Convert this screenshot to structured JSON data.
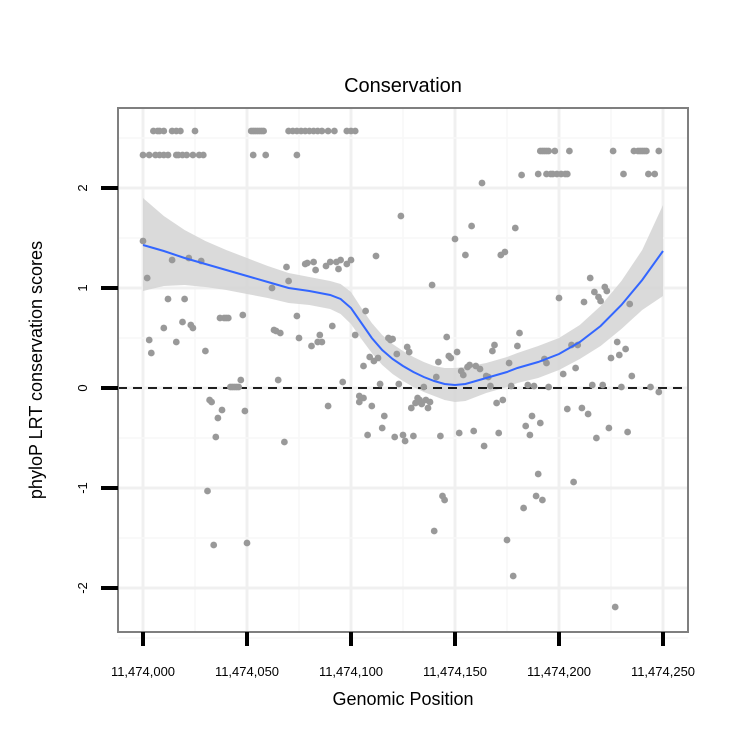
{
  "chart_data": {
    "type": "scatter",
    "title": "Conservation",
    "xlabel": "Genomic Position",
    "ylabel": "phyloP LRT conservation scores",
    "xlim": [
      11473988,
      11474262
    ],
    "ylim": [
      -2.45,
      2.8
    ],
    "xticks": [
      11474000,
      11474050,
      11474100,
      11474150,
      11474200,
      11474250
    ],
    "xtick_labels": [
      "11,474,000",
      "11,474,050",
      "11,474,100",
      "11,474,150",
      "11,474,200",
      "11,474,250"
    ],
    "yticks": [
      -2,
      -1,
      0,
      1,
      2
    ],
    "ytick_labels": [
      "-2",
      "-1",
      "0",
      "1",
      "2"
    ],
    "reference_line": {
      "y": 0,
      "style": "dashed"
    },
    "colors": {
      "points": "#999999",
      "smooth": "#3366FF",
      "band": "#d3d3d3",
      "frame": "#7f7f7f",
      "grid": "#f2f2f2"
    },
    "points": [
      [
        11474000,
        1.47
      ],
      [
        11474002,
        1.1
      ],
      [
        11474003,
        0.48
      ],
      [
        11474004,
        0.35
      ],
      [
        11474005,
        2.57
      ],
      [
        11474007,
        2.57
      ],
      [
        11474008,
        2.57
      ],
      [
        11474010,
        2.57
      ],
      [
        11474000,
        2.33
      ],
      [
        11474003,
        2.33
      ],
      [
        11474006,
        2.33
      ],
      [
        11474008,
        2.33
      ],
      [
        11474010,
        2.33
      ],
      [
        11474012,
        2.33
      ],
      [
        11474014,
        2.57
      ],
      [
        11474016,
        2.33
      ],
      [
        11474017,
        2.33
      ],
      [
        11474019,
        2.33
      ],
      [
        11474021,
        2.33
      ],
      [
        11474016,
        2.57
      ],
      [
        11474018,
        2.57
      ],
      [
        11474025,
        2.57
      ],
      [
        11474024,
        2.33
      ],
      [
        11474027,
        2.33
      ],
      [
        11474029,
        2.33
      ],
      [
        11474010,
        0.6
      ],
      [
        11474012,
        0.89
      ],
      [
        11474014,
        1.28
      ],
      [
        11474016,
        0.46
      ],
      [
        11474019,
        0.66
      ],
      [
        11474020,
        0.89
      ],
      [
        11474023,
        0.63
      ],
      [
        11474024,
        0.6
      ],
      [
        11474022,
        1.3
      ],
      [
        11474028,
        1.27
      ],
      [
        11474030,
        0.37
      ],
      [
        11474031,
        -1.03
      ],
      [
        11474032,
        -0.12
      ],
      [
        11474033,
        -0.14
      ],
      [
        11474034,
        -1.57
      ],
      [
        11474035,
        -0.49
      ],
      [
        11474036,
        -0.3
      ],
      [
        11474037,
        0.7
      ],
      [
        11474038,
        -0.22
      ],
      [
        11474039,
        0.7
      ],
      [
        11474040,
        0.7
      ],
      [
        11474041,
        0.7
      ],
      [
        11474042,
        0.01
      ],
      [
        11474043,
        0.01
      ],
      [
        11474044,
        0.01
      ],
      [
        11474045,
        0.01
      ],
      [
        11474046,
        0.01
      ],
      [
        11474047,
        0.08
      ],
      [
        11474048,
        0.73
      ],
      [
        11474049,
        -0.23
      ],
      [
        11474050,
        -1.55
      ],
      [
        11474052,
        2.57
      ],
      [
        11474053,
        2.57
      ],
      [
        11474054,
        2.57
      ],
      [
        11474055,
        2.57
      ],
      [
        11474056,
        2.57
      ],
      [
        11474057,
        2.57
      ],
      [
        11474058,
        2.57
      ],
      [
        11474053,
        2.33
      ],
      [
        11474059,
        2.33
      ],
      [
        11474062,
        1.0
      ],
      [
        11474063,
        0.58
      ],
      [
        11474064,
        0.57
      ],
      [
        11474065,
        0.08
      ],
      [
        11474066,
        0.55
      ],
      [
        11474068,
        -0.54
      ],
      [
        11474069,
        1.21
      ],
      [
        11474070,
        1.07
      ],
      [
        11474070,
        2.57
      ],
      [
        11474072,
        2.57
      ],
      [
        11474074,
        2.57
      ],
      [
        11474076,
        2.57
      ],
      [
        11474078,
        2.57
      ],
      [
        11474080,
        2.57
      ],
      [
        11474082,
        2.57
      ],
      [
        11474084,
        2.57
      ],
      [
        11474086,
        2.57
      ],
      [
        11474089,
        2.57
      ],
      [
        11474092,
        2.57
      ],
      [
        11474098,
        2.57
      ],
      [
        11474100,
        2.57
      ],
      [
        11474102,
        2.57
      ],
      [
        11474074,
        2.33
      ],
      [
        11474074,
        0.72
      ],
      [
        11474075,
        0.5
      ],
      [
        11474078,
        1.24
      ],
      [
        11474079,
        1.25
      ],
      [
        11474081,
        0.42
      ],
      [
        11474082,
        1.26
      ],
      [
        11474083,
        1.18
      ],
      [
        11474084,
        0.46
      ],
      [
        11474085,
        0.53
      ],
      [
        11474086,
        0.46
      ],
      [
        11474088,
        1.22
      ],
      [
        11474089,
        -0.18
      ],
      [
        11474090,
        1.26
      ],
      [
        11474091,
        0.62
      ],
      [
        11474093,
        1.26
      ],
      [
        11474094,
        1.19
      ],
      [
        11474095,
        1.28
      ],
      [
        11474096,
        0.06
      ],
      [
        11474098,
        1.24
      ],
      [
        11474100,
        1.28
      ],
      [
        11474102,
        0.53
      ],
      [
        11474104,
        -0.14
      ],
      [
        11474104,
        -0.08
      ],
      [
        11474106,
        -0.1
      ],
      [
        11474106,
        0.22
      ],
      [
        11474107,
        0.77
      ],
      [
        11474108,
        -0.47
      ],
      [
        11474109,
        0.31
      ],
      [
        11474110,
        -0.18
      ],
      [
        11474111,
        0.27
      ],
      [
        11474112,
        1.32
      ],
      [
        11474113,
        0.3
      ],
      [
        11474114,
        0.04
      ],
      [
        11474115,
        -0.4
      ],
      [
        11474116,
        -0.28
      ],
      [
        11474118,
        0.5
      ],
      [
        11474119,
        0.48
      ],
      [
        11474120,
        0.49
      ],
      [
        11474121,
        -0.49
      ],
      [
        11474122,
        0.34
      ],
      [
        11474123,
        0.04
      ],
      [
        11474124,
        1.72
      ],
      [
        11474125,
        -0.47
      ],
      [
        11474126,
        -0.53
      ],
      [
        11474127,
        0.41
      ],
      [
        11474128,
        0.36
      ],
      [
        11474129,
        -0.2
      ],
      [
        11474130,
        -0.48
      ],
      [
        11474131,
        -0.15
      ],
      [
        11474132,
        -0.1
      ],
      [
        11474133,
        -0.12
      ],
      [
        11474134,
        -0.16
      ],
      [
        11474135,
        0.01
      ],
      [
        11474136,
        -0.12
      ],
      [
        11474137,
        -0.2
      ],
      [
        11474138,
        -0.14
      ],
      [
        11474139,
        1.03
      ],
      [
        11474140,
        -1.43
      ],
      [
        11474141,
        0.11
      ],
      [
        11474142,
        0.26
      ],
      [
        11474143,
        -0.48
      ],
      [
        11474144,
        -1.08
      ],
      [
        11474145,
        -1.12
      ],
      [
        11474146,
        0.51
      ],
      [
        11474147,
        0.32
      ],
      [
        11474148,
        0.3
      ],
      [
        11474150,
        1.49
      ],
      [
        11474151,
        0.36
      ],
      [
        11474152,
        -0.45
      ],
      [
        11474153,
        0.17
      ],
      [
        11474154,
        0.13
      ],
      [
        11474155,
        1.33
      ],
      [
        11474156,
        0.21
      ],
      [
        11474157,
        0.23
      ],
      [
        11474158,
        1.62
      ],
      [
        11474159,
        -0.43
      ],
      [
        11474160,
        0.22
      ],
      [
        11474162,
        0.19
      ],
      [
        11474163,
        2.05
      ],
      [
        11474164,
        -0.58
      ],
      [
        11474165,
        0.12
      ],
      [
        11474166,
        0.11
      ],
      [
        11474167,
        0.02
      ],
      [
        11474168,
        0.37
      ],
      [
        11474169,
        0.43
      ],
      [
        11474170,
        -0.15
      ],
      [
        11474171,
        -0.45
      ],
      [
        11474172,
        1.33
      ],
      [
        11474173,
        -0.12
      ],
      [
        11474174,
        1.36
      ],
      [
        11474175,
        -1.52
      ],
      [
        11474176,
        0.25
      ],
      [
        11474177,
        0.02
      ],
      [
        11474178,
        -1.88
      ],
      [
        11474179,
        1.6
      ],
      [
        11474180,
        0.42
      ],
      [
        11474181,
        0.55
      ],
      [
        11474182,
        2.13
      ],
      [
        11474183,
        -1.2
      ],
      [
        11474184,
        -0.38
      ],
      [
        11474185,
        0.03
      ],
      [
        11474186,
        -0.47
      ],
      [
        11474187,
        -0.28
      ],
      [
        11474188,
        0.02
      ],
      [
        11474189,
        -1.08
      ],
      [
        11474190,
        -0.86
      ],
      [
        11474191,
        -0.35
      ],
      [
        11474192,
        -1.12
      ],
      [
        11474193,
        0.29
      ],
      [
        11474194,
        0.25
      ],
      [
        11474195,
        0.01
      ],
      [
        11474191,
        2.37
      ],
      [
        11474192,
        2.37
      ],
      [
        11474193,
        2.37
      ],
      [
        11474194,
        2.37
      ],
      [
        11474195,
        2.37
      ],
      [
        11474198,
        2.37
      ],
      [
        11474190,
        2.14
      ],
      [
        11474194,
        2.14
      ],
      [
        11474196,
        2.14
      ],
      [
        11474197,
        2.14
      ],
      [
        11474199,
        2.14
      ],
      [
        11474201,
        2.14
      ],
      [
        11474203,
        2.14
      ],
      [
        11474204,
        2.14
      ],
      [
        11474205,
        2.37
      ],
      [
        11474200,
        0.9
      ],
      [
        11474202,
        0.14
      ],
      [
        11474204,
        -0.21
      ],
      [
        11474206,
        0.43
      ],
      [
        11474207,
        -0.94
      ],
      [
        11474208,
        0.2
      ],
      [
        11474209,
        0.43
      ],
      [
        11474211,
        -0.2
      ],
      [
        11474212,
        0.86
      ],
      [
        11474214,
        -0.26
      ],
      [
        11474215,
        1.1
      ],
      [
        11474216,
        0.03
      ],
      [
        11474217,
        0.96
      ],
      [
        11474218,
        -0.5
      ],
      [
        11474219,
        0.91
      ],
      [
        11474220,
        0.87
      ],
      [
        11474221,
        0.03
      ],
      [
        11474222,
        1.01
      ],
      [
        11474223,
        0.97
      ],
      [
        11474224,
        -0.4
      ],
      [
        11474225,
        0.3
      ],
      [
        11474226,
        2.37
      ],
      [
        11474227,
        -2.19
      ],
      [
        11474228,
        0.46
      ],
      [
        11474229,
        0.33
      ],
      [
        11474230,
        0.01
      ],
      [
        11474231,
        2.14
      ],
      [
        11474232,
        0.39
      ],
      [
        11474233,
        -0.44
      ],
      [
        11474234,
        0.84
      ],
      [
        11474235,
        0.12
      ],
      [
        11474236,
        2.37
      ],
      [
        11474238,
        2.37
      ],
      [
        11474239,
        2.37
      ],
      [
        11474240,
        2.37
      ],
      [
        11474241,
        2.37
      ],
      [
        11474242,
        2.37
      ],
      [
        11474243,
        2.14
      ],
      [
        11474244,
        0.01
      ],
      [
        11474246,
        2.14
      ],
      [
        11474248,
        2.37
      ],
      [
        11474248,
        -0.04
      ]
    ],
    "smooth_line": {
      "x": [
        11474000,
        11474010,
        11474020,
        11474030,
        11474040,
        11474050,
        11474060,
        11474070,
        11474080,
        11474090,
        11474095,
        11474100,
        11474105,
        11474110,
        11474115,
        11474120,
        11474125,
        11474130,
        11474135,
        11474140,
        11474145,
        11474150,
        11474155,
        11474160,
        11474165,
        11474170,
        11474175,
        11474180,
        11474190,
        11474200,
        11474210,
        11474220,
        11474230,
        11474240,
        11474250
      ],
      "y": [
        1.43,
        1.37,
        1.3,
        1.24,
        1.18,
        1.12,
        1.06,
        1.0,
        0.97,
        0.93,
        0.89,
        0.8,
        0.65,
        0.5,
        0.38,
        0.29,
        0.22,
        0.16,
        0.11,
        0.07,
        0.04,
        0.03,
        0.04,
        0.07,
        0.1,
        0.13,
        0.16,
        0.2,
        0.26,
        0.34,
        0.46,
        0.62,
        0.83,
        1.08,
        1.37
      ]
    },
    "confidence_band": {
      "upper": [
        1.9,
        1.72,
        1.58,
        1.47,
        1.38,
        1.3,
        1.22,
        1.15,
        1.11,
        1.07,
        1.04,
        0.96,
        0.8,
        0.65,
        0.53,
        0.44,
        0.37,
        0.31,
        0.26,
        0.22,
        0.2,
        0.2,
        0.21,
        0.23,
        0.25,
        0.28,
        0.31,
        0.35,
        0.42,
        0.5,
        0.63,
        0.82,
        1.07,
        1.38,
        1.83
      ],
      "lower": [
        0.97,
        1.02,
        1.03,
        1.01,
        0.98,
        0.94,
        0.9,
        0.85,
        0.83,
        0.79,
        0.74,
        0.64,
        0.49,
        0.35,
        0.23,
        0.14,
        0.07,
        0.01,
        -0.04,
        -0.08,
        -0.12,
        -0.14,
        -0.13,
        -0.09,
        -0.05,
        -0.02,
        0.01,
        0.05,
        0.1,
        0.18,
        0.29,
        0.42,
        0.59,
        0.78,
        0.92
      ]
    }
  }
}
